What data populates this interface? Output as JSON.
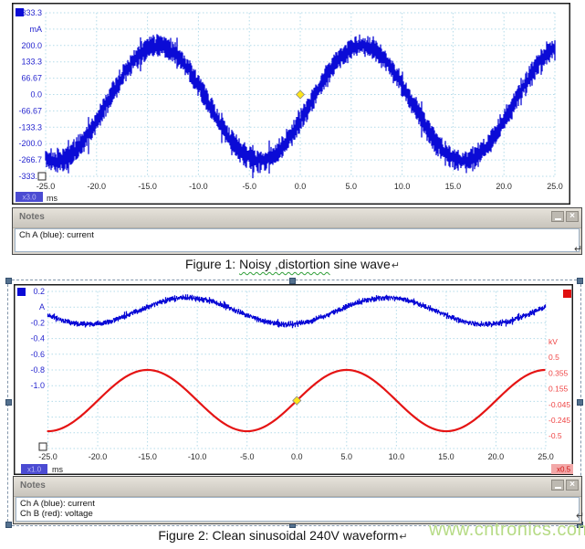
{
  "marks": {
    "return": "↵"
  },
  "icons": {
    "close_glyph": "×",
    "minimize_glyph": "–"
  },
  "figure1": {
    "notes": {
      "title": "Notes",
      "lines": [
        "Ch A (blue): current"
      ]
    },
    "caption": {
      "prefix": "Figure 1: ",
      "flagged": "Noisy ,distortion",
      "suffix": " sine wave"
    }
  },
  "figure2": {
    "notes": {
      "title": "Notes",
      "lines": [
        "Ch A (blue): current",
        "Ch B (red): voltage"
      ]
    },
    "caption": {
      "text": "Figure 2: Clean sinusoidal 240V waveform"
    },
    "watermark": "www.cntronics.com"
  },
  "chart_data": [
    {
      "id": "figure1-scope",
      "type": "line",
      "xlabel_unit": "ms",
      "y_unit": "mA",
      "xlim": [
        -25,
        25
      ],
      "ylim": [
        -333.3,
        333.3
      ],
      "grid": true,
      "x_ticks": [
        "-25.0",
        "-20.0",
        "-15.0",
        "-10.0",
        "-5.0",
        "0.0",
        "5.0",
        "10.0",
        "15.0",
        "20.0",
        "25.0"
      ],
      "y_ticks": [
        "333.3",
        "mA",
        "200.0",
        "133.3",
        "66.67",
        "0.0",
        "-66.67",
        "-133.3",
        "-200.0",
        "-266.7",
        "-333.3"
      ],
      "x_zoom_badge": "x3.0",
      "series": [
        {
          "name": "Ch A (blue): current",
          "unit": "mA",
          "color": "#0b0bd6",
          "style": "noisy",
          "mean": -35,
          "amplitude": 235,
          "period": 20,
          "phase": 1,
          "noise": 45
        }
      ],
      "trigger_marker": {
        "t_ms": 0,
        "value_mA": 0
      }
    },
    {
      "id": "figure2-scope",
      "type": "line",
      "xlabel_unit": "ms",
      "left_unit": "A",
      "right_unit": "kV",
      "xlim": [
        -25,
        25
      ],
      "left_ylim": [
        -1.8,
        0.2
      ],
      "right_ylim": [
        -0.5,
        0.5
      ],
      "grid": true,
      "x_ticks": [
        "-25.0",
        "-20.0",
        "-15.0",
        "-10.0",
        "-5.0",
        "0.0",
        "5.0",
        "10.0",
        "15.0",
        "20.0",
        "25.0"
      ],
      "y_ticks": [
        "0.2",
        "A",
        "-0.2",
        "-0.4",
        "-0.6",
        "-0.8",
        "-1.0"
      ],
      "right_ticks": [
        "kV",
        "0.5",
        "0.355",
        "0.155",
        "-0.045",
        "-0.245",
        "-0.5"
      ],
      "x_zoom_badge": "x1.0",
      "right_zoom_badge": "x0.5",
      "series": [
        {
          "name": "Ch A (blue): current",
          "unit": "A",
          "color": "#0b0bd6",
          "style": "noisy",
          "mean": -0.05,
          "amplitude": 0.17,
          "period": 20,
          "phase": -16,
          "noise": 0.03
        },
        {
          "name": "Ch B (red): voltage",
          "unit": "kV",
          "color": "#e51414",
          "style": "clean",
          "mean": -0.035,
          "amplitude": 0.39,
          "period": 20,
          "phase": 0,
          "peak_kV": 0.355
        }
      ],
      "trigger_marker": {
        "t_ms": 0,
        "on_series": "Ch B (red): voltage",
        "value_kV": -0.035
      }
    }
  ]
}
